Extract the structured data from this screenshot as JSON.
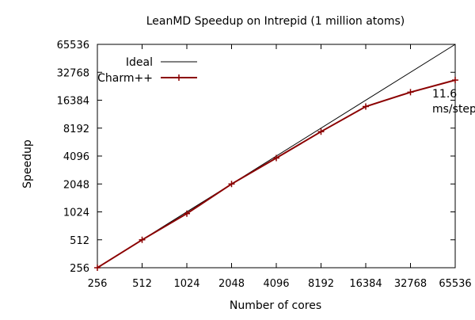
{
  "chart_data": {
    "type": "line",
    "title": "LeanMD Speedup on Intrepid (1 million atoms)",
    "xlabel": "Number of cores",
    "ylabel": "Speedup",
    "x_scale": "log2",
    "y_scale": "log2",
    "xlim": [
      256,
      65536
    ],
    "ylim": [
      256,
      65536
    ],
    "x_ticks": [
      256,
      512,
      1024,
      2048,
      4096,
      8192,
      16384,
      32768,
      65536
    ],
    "y_ticks": [
      256,
      512,
      1024,
      2048,
      4096,
      8192,
      16384,
      32768,
      65536
    ],
    "x_tick_labels": [
      "256",
      "512",
      "1024",
      "2048",
      "4096",
      "8192",
      "16384",
      "32768",
      "65536"
    ],
    "y_tick_labels": [
      "256",
      "512",
      "1024",
      "2048",
      "4096",
      "8192",
      "16384",
      "32768",
      "65536"
    ],
    "grid": false,
    "legend_position": "top-left",
    "series": [
      {
        "name": "Ideal",
        "color": "#000000",
        "markers": false,
        "x": [
          256,
          65536
        ],
        "y": [
          256,
          65536
        ]
      },
      {
        "name": "Charm++",
        "color": "#8b0000",
        "markers": true,
        "x": [
          256,
          512,
          1024,
          2048,
          4096,
          8192,
          16384,
          32768,
          65536
        ],
        "y": [
          256,
          512,
          980,
          2048,
          3900,
          7500,
          14000,
          20000,
          27000
        ]
      }
    ],
    "annotations": [
      {
        "text_line1": "11.6",
        "text_line2": "ms/step",
        "x": 65536,
        "y": 27000
      }
    ]
  }
}
